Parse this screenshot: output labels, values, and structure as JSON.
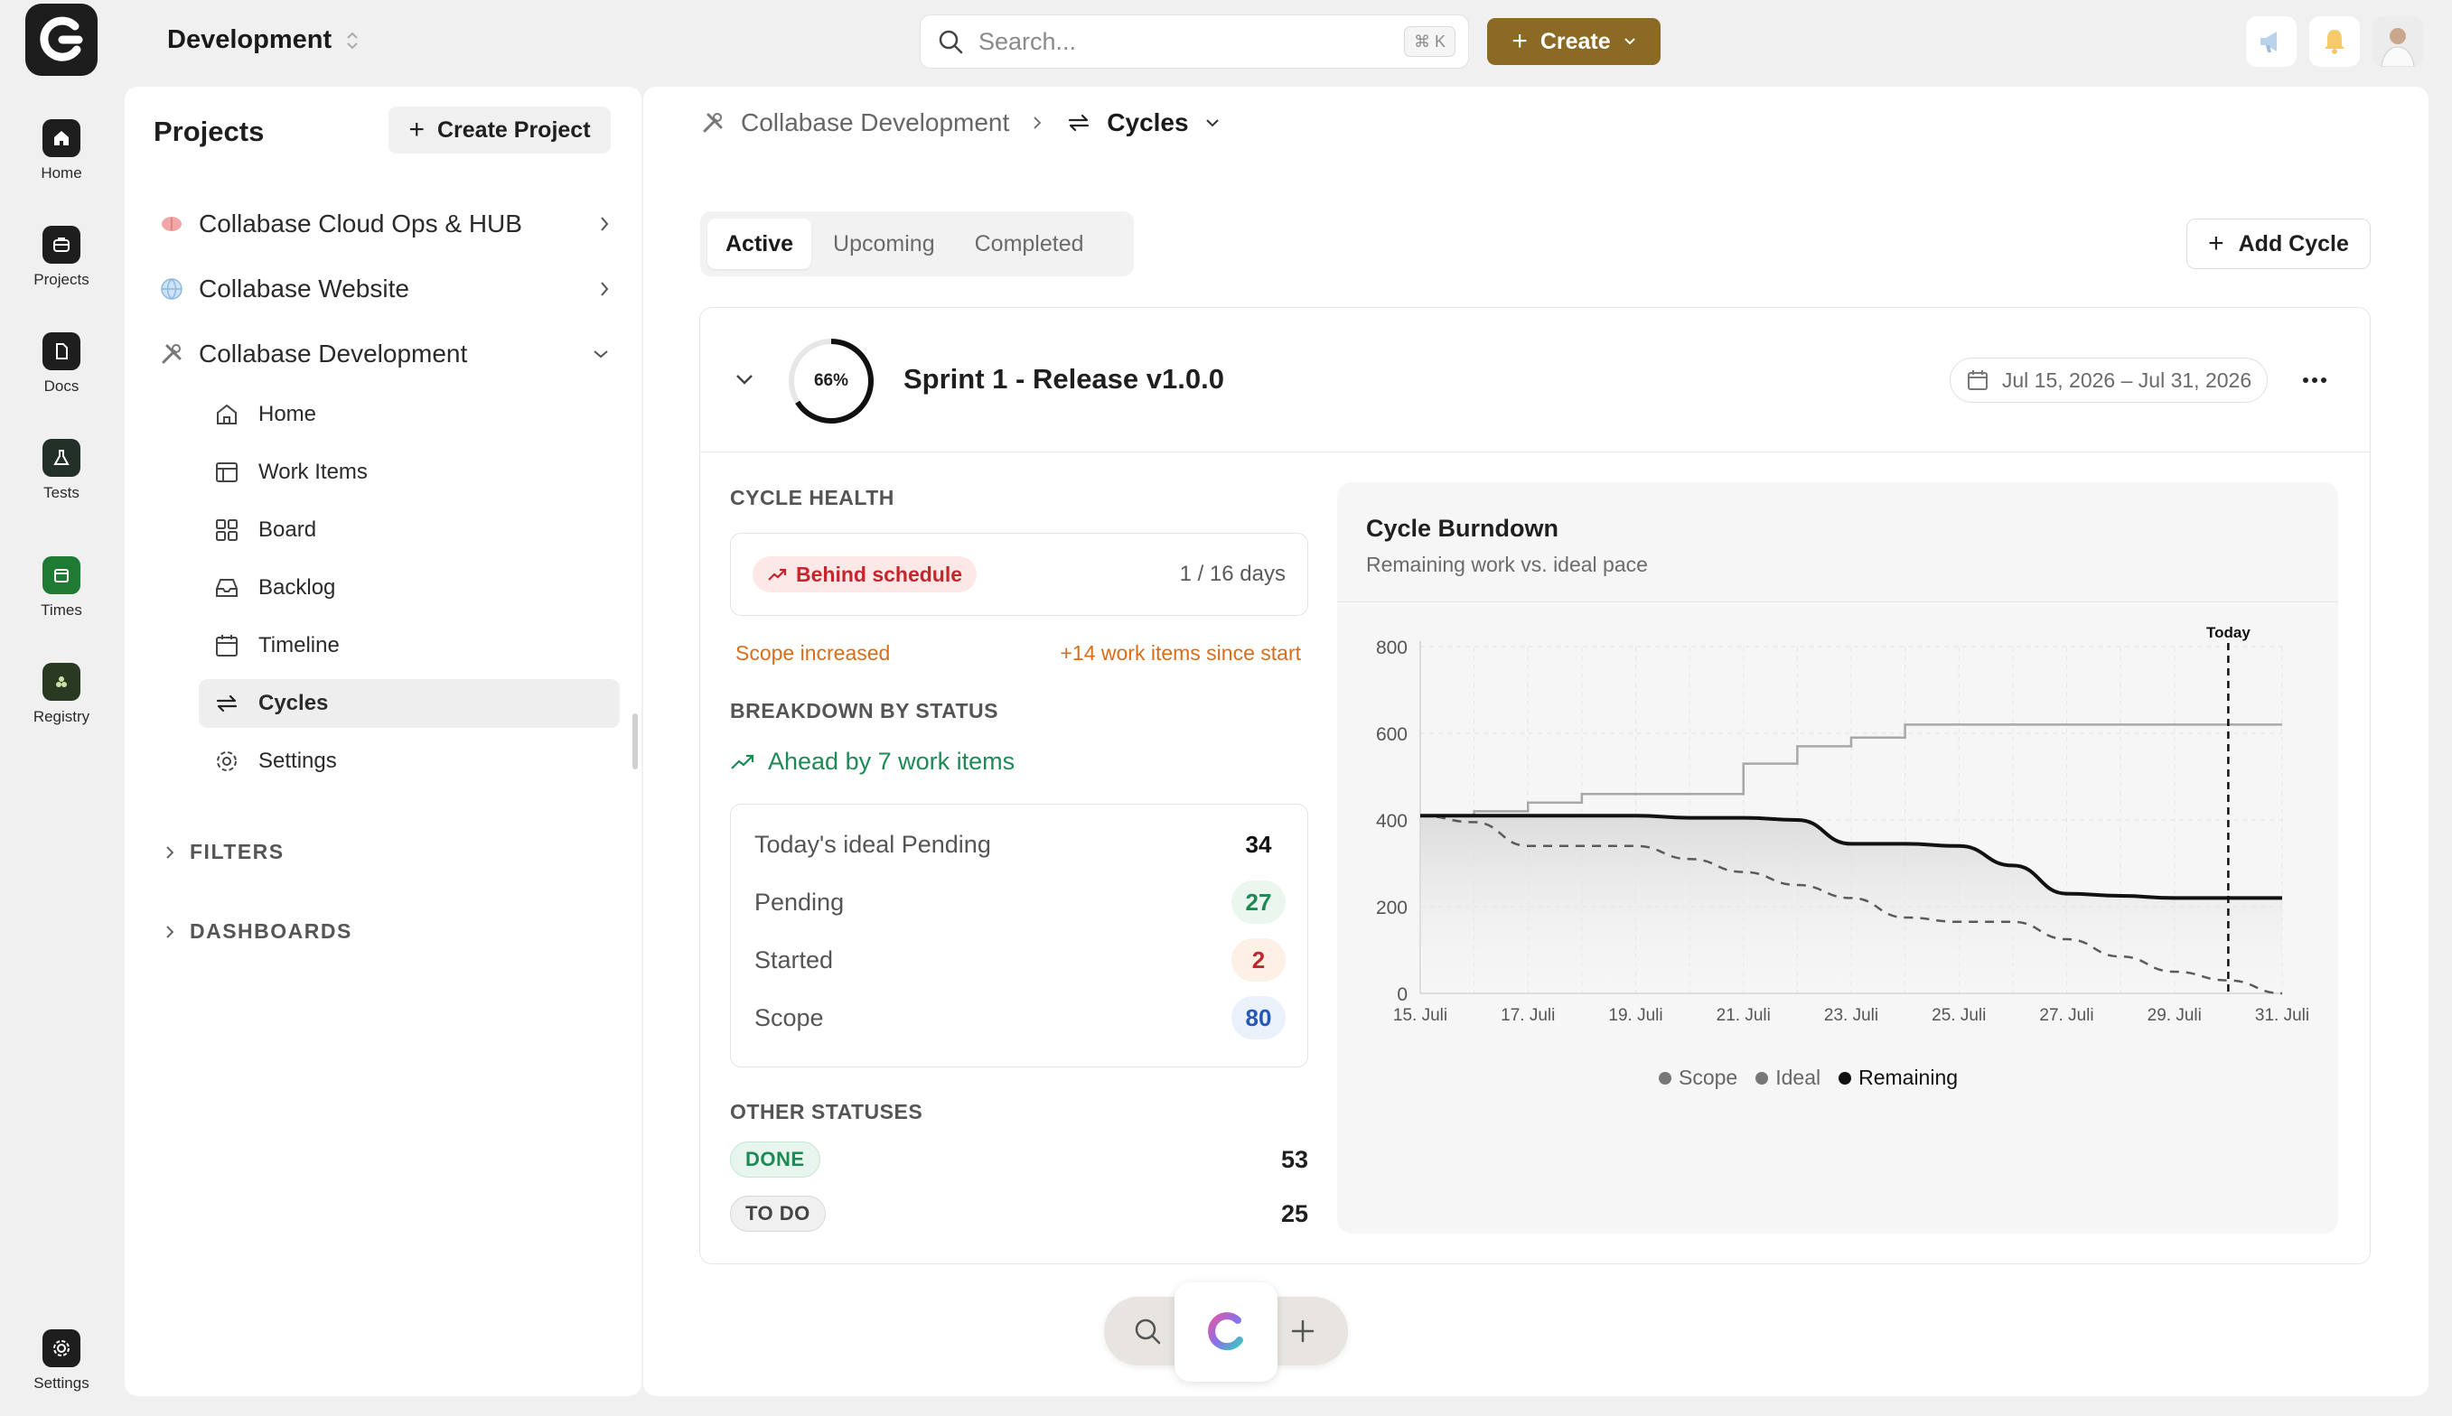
{
  "rail": {
    "items": [
      {
        "label": "Home",
        "icon": "home-icon"
      },
      {
        "label": "Projects",
        "icon": "briefcase-icon"
      },
      {
        "label": "Docs",
        "icon": "document-icon"
      },
      {
        "label": "Tests",
        "icon": "flask-icon"
      },
      {
        "label": "Times",
        "icon": "calendar-icon"
      },
      {
        "label": "Registry",
        "icon": "registry-icon"
      }
    ],
    "settings_label": "Settings"
  },
  "topbar": {
    "workspace": "Development",
    "search_placeholder": "Search...",
    "search_shortcut": "⌘ K",
    "create_label": "Create"
  },
  "projects": {
    "title": "Projects",
    "create_label": "Create Project",
    "list": [
      {
        "name": "Collabase Cloud Ops & HUB",
        "icon": "brain-icon"
      },
      {
        "name": "Collabase Website",
        "icon": "globe-icon"
      },
      {
        "name": "Collabase Development",
        "icon": "tools-icon"
      }
    ],
    "sub_items": [
      {
        "label": "Home",
        "icon": "home-outline-icon"
      },
      {
        "label": "Work Items",
        "icon": "table-icon"
      },
      {
        "label": "Board",
        "icon": "board-icon"
      },
      {
        "label": "Backlog",
        "icon": "inbox-icon"
      },
      {
        "label": "Timeline",
        "icon": "calendar-outline-icon"
      },
      {
        "label": "Cycles",
        "icon": "cycle-icon"
      },
      {
        "label": "Settings",
        "icon": "gear-outline-icon"
      }
    ],
    "active_sub": "Cycles",
    "sections": [
      "FILTERS",
      "DASHBOARDS"
    ]
  },
  "breadcrumb": {
    "project": "Collabase Development",
    "current": "Cycles"
  },
  "tabs": [
    "Active",
    "Upcoming",
    "Completed"
  ],
  "active_tab": "Active",
  "add_cycle_label": "Add Cycle",
  "cycle": {
    "progress_label": "66%",
    "progress": 0.66,
    "name": "Sprint 1 - Release v1.0.0",
    "dates": "Jul 15, 2026 – Jul 31, 2026"
  },
  "health": {
    "heading": "CYCLE HEALTH",
    "status": "Behind schedule",
    "days": "1 / 16 days",
    "scope_note": "Scope increased",
    "scope_delta": "+14 work items since start"
  },
  "breakdown": {
    "heading": "BREAKDOWN BY STATUS",
    "ahead": "Ahead by 7 work items",
    "rows": [
      {
        "label": "Today's ideal Pending",
        "value": "34"
      },
      {
        "label": "Pending",
        "value": "27"
      },
      {
        "label": "Started",
        "value": "2"
      },
      {
        "label": "Scope",
        "value": "80"
      }
    ]
  },
  "other": {
    "heading": "OTHER STATUSES",
    "rows": [
      {
        "label": "DONE",
        "value": "53"
      },
      {
        "label": "TO DO",
        "value": "25"
      }
    ]
  },
  "chart_data": {
    "type": "line",
    "title": "Cycle Burndown",
    "subtitle": "Remaining work vs. ideal pace",
    "x": [
      "15. Juli",
      "16. Juli",
      "17. Juli",
      "18. Juli",
      "19. Juli",
      "20. Juli",
      "21. Juli",
      "22. Juli",
      "23. Juli",
      "24. Juli",
      "25. Juli",
      "26. Juli",
      "27. Juli",
      "28. Juli",
      "29. Juli",
      "30. Juli",
      "31. Juli"
    ],
    "xticks": [
      "15. Juli",
      "17. Juli",
      "19. Juli",
      "21. Juli",
      "23. Juli",
      "25. Juli",
      "27. Juli",
      "29. Juli",
      "31. Juli"
    ],
    "ylim": [
      0,
      800
    ],
    "yticks": [
      0,
      200,
      400,
      600,
      800
    ],
    "series": [
      {
        "name": "Scope",
        "color": "#a8a8a8",
        "values": [
          410,
          420,
          440,
          460,
          460,
          460,
          530,
          570,
          590,
          620,
          620,
          620,
          620,
          620,
          620,
          620,
          620
        ]
      },
      {
        "name": "Ideal",
        "color": "#5a5a5a",
        "values": [
          410,
          395,
          340,
          340,
          340,
          310,
          280,
          250,
          220,
          175,
          165,
          165,
          125,
          85,
          50,
          30,
          0
        ]
      },
      {
        "name": "Remaining",
        "color": "#111111",
        "values": [
          410,
          410,
          410,
          410,
          410,
          405,
          405,
          400,
          345,
          345,
          340,
          295,
          230,
          225,
          220,
          220,
          220
        ]
      }
    ],
    "annotation": {
      "label": "Today",
      "x": "30. Juli"
    },
    "legend": [
      "Scope",
      "Ideal",
      "Remaining"
    ],
    "grid": true
  }
}
